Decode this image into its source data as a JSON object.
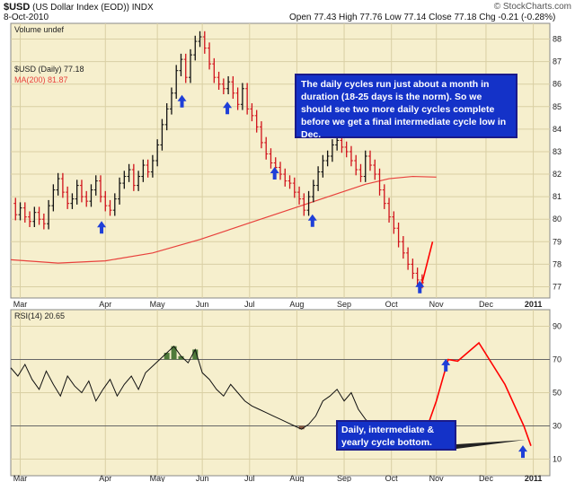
{
  "header": {
    "symbol": "$USD",
    "name": "(US Dollar Index (EOD))",
    "exchange": "INDX",
    "date": "8-Oct-2010",
    "ohlc": "Open 77.43  High 77.76  Low 77.14  Close 77.18  Chg -0.21 (-0.28%)",
    "brand": "© StockCharts.com"
  },
  "colors": {
    "panel_bg": "#f6efcd",
    "grid": "#d9cfa4",
    "price_up": "#111111",
    "price_down": "#d0121b",
    "ma": "#e8413c",
    "projection": "#ff0000",
    "arrow": "#1f3fd8",
    "rsi_fill_high": "#4e7a3a",
    "rsi_fill_low": "#8a5a40",
    "annotation_text": "#ffffff",
    "annotation_bg": "#1432c8"
  },
  "chart_data": [
    {
      "type": "line",
      "panel": "price",
      "title": "$USD (Daily) 77.18",
      "volume_label": "Volume undef",
      "ma_label": "MA(200) 81.87",
      "y_ticks": [
        77,
        78,
        79,
        80,
        81,
        82,
        83,
        84,
        85,
        86,
        87,
        88
      ],
      "ylim": [
        76.5,
        88.7
      ],
      "x_labels": [
        "Mar",
        "Apr",
        "May",
        "Jun",
        "Jul",
        "Aug",
        "Sep",
        "Oct",
        "Nov",
        "Dec",
        "2011"
      ],
      "x_label_pos": [
        0.2,
        2.0,
        3.1,
        4.05,
        5.05,
        6.05,
        7.05,
        8.05,
        9.0,
        10.05,
        11.05
      ],
      "price_x": [
        0,
        0.1,
        0.2,
        0.3,
        0.4,
        0.5,
        0.6,
        0.7,
        0.8,
        0.9,
        1.0,
        1.1,
        1.2,
        1.3,
        1.4,
        1.5,
        1.6,
        1.7,
        1.8,
        1.9,
        2.0,
        2.1,
        2.2,
        2.3,
        2.4,
        2.5,
        2.6,
        2.7,
        2.8,
        2.9,
        3.0,
        3.1,
        3.2,
        3.3,
        3.4,
        3.5,
        3.6,
        3.7,
        3.8,
        3.9,
        4.0,
        4.1,
        4.2,
        4.3,
        4.4,
        4.5,
        4.6,
        4.7,
        4.8,
        4.9,
        5.0,
        5.1,
        5.2,
        5.3,
        5.4,
        5.5,
        5.6,
        5.7,
        5.8,
        5.9,
        6.0,
        6.1,
        6.2,
        6.3,
        6.4,
        6.5,
        6.6,
        6.7,
        6.8,
        6.9,
        7.0,
        7.1,
        7.2,
        7.3,
        7.4,
        7.5,
        7.6,
        7.7,
        7.8,
        7.9,
        8.0
      ],
      "price_y": [
        80.7,
        80.2,
        80.5,
        80.1,
        79.9,
        80.3,
        80.0,
        79.8,
        80.6,
        81.3,
        81.8,
        81.2,
        80.7,
        80.9,
        81.5,
        81.0,
        80.8,
        81.3,
        81.7,
        81.0,
        80.6,
        80.4,
        80.9,
        81.6,
        81.9,
        82.2,
        81.5,
        81.9,
        82.4,
        82.1,
        82.6,
        83.3,
        84.2,
        84.9,
        85.6,
        86.6,
        87.1,
        86.3,
        87.3,
        87.9,
        88.1,
        87.6,
        86.9,
        86.3,
        86.0,
        85.8,
        86.1,
        85.6,
        85.1,
        85.8,
        84.9,
        84.6,
        84.1,
        83.4,
        82.9,
        82.5,
        82.3,
        82.0,
        81.7,
        81.6,
        81.2,
        80.9,
        80.4,
        81.0,
        81.5,
        82.1,
        82.6,
        82.8,
        83.3,
        83.5,
        83.2,
        83.0,
        82.6,
        82.2,
        81.9,
        82.8,
        82.4,
        82.0,
        81.3,
        80.7,
        80.1
      ],
      "price_x_tail": [
        8.0,
        8.1,
        8.2,
        8.3,
        8.4,
        8.5,
        8.6,
        8.7
      ],
      "price_y_tail": [
        80.1,
        79.6,
        79.0,
        78.5,
        78.0,
        77.6,
        77.3,
        77.18
      ],
      "ma_x": [
        0.0,
        1.0,
        2.0,
        3.0,
        4.0,
        5.0,
        6.0,
        7.0,
        7.5,
        8.0,
        8.5,
        9.0
      ],
      "ma_y": [
        78.2,
        78.05,
        78.15,
        78.5,
        79.1,
        79.8,
        80.5,
        81.2,
        81.55,
        81.8,
        81.9,
        81.87
      ],
      "projection_x": [
        8.7,
        8.92
      ],
      "projection_y": [
        77.18,
        79.0
      ],
      "arrows_x": [
        1.92,
        3.62,
        4.58,
        5.58,
        6.38,
        8.65
      ],
      "arrows_y": [
        79.6,
        85.2,
        84.9,
        82.0,
        79.9,
        76.95
      ]
    },
    {
      "type": "line",
      "panel": "rsi",
      "title": "RSI(14) 20.65",
      "y_ticks": [
        10,
        30,
        50,
        70,
        90
      ],
      "ylim": [
        0,
        100
      ],
      "levels": [
        70,
        30
      ],
      "rsi_x": [
        0,
        0.15,
        0.3,
        0.45,
        0.6,
        0.75,
        0.9,
        1.05,
        1.2,
        1.35,
        1.5,
        1.65,
        1.8,
        1.95,
        2.1,
        2.25,
        2.4,
        2.55,
        2.7,
        2.85,
        3.0,
        3.15,
        3.3,
        3.45,
        3.6,
        3.75,
        3.9,
        4.05,
        4.2,
        4.35,
        4.5,
        4.65,
        4.8,
        4.95,
        5.1,
        5.25,
        5.4,
        5.55,
        5.7,
        5.85,
        6.0,
        6.15,
        6.3,
        6.45,
        6.6,
        6.75,
        6.9,
        7.05,
        7.2,
        7.35,
        7.5,
        7.65,
        7.8,
        7.95,
        8.1,
        8.25,
        8.4,
        8.55,
        8.7
      ],
      "rsi_y": [
        65,
        60,
        67,
        58,
        52,
        63,
        55,
        48,
        60,
        54,
        50,
        57,
        45,
        52,
        58,
        48,
        55,
        60,
        52,
        62,
        66,
        70,
        74,
        78,
        72,
        68,
        76,
        62,
        58,
        52,
        48,
        55,
        50,
        45,
        42,
        40,
        38,
        36,
        34,
        32,
        30,
        28,
        31,
        36,
        45,
        48,
        52,
        45,
        50,
        40,
        34,
        30,
        31,
        28,
        25,
        25,
        22,
        23,
        20.65
      ],
      "projection_x": [
        8.7,
        9.0,
        9.25,
        9.45,
        9.9,
        10.45,
        10.85,
        11.0
      ],
      "projection_y": [
        20.65,
        45,
        70,
        69,
        80,
        55,
        30,
        18
      ],
      "arrows_x": [
        9.2,
        10.83
      ],
      "arrows_y": [
        66,
        14
      ]
    }
  ],
  "annotations": {
    "top": "The daily cycles run just about a month in duration (18-25 days is the norm). So we should see two more daily cycles complete before we get a final intermediate cycle low in Dec.",
    "bottom": "Daily, intermediate & yearly cycle bottom."
  }
}
